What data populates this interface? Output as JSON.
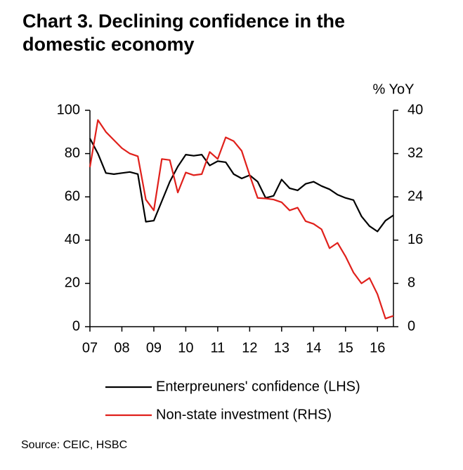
{
  "chart_data": {
    "type": "line",
    "title": "Chart 3. Declining confidence in the domestic economy",
    "y2_label": "% YoY",
    "source": "Source: CEIC, HSBC",
    "x": [
      2007,
      2007.25,
      2007.5,
      2007.75,
      2008,
      2008.25,
      2008.5,
      2008.75,
      2009,
      2009.25,
      2009.5,
      2009.75,
      2010,
      2010.25,
      2010.5,
      2010.75,
      2011,
      2011.25,
      2011.5,
      2011.75,
      2012,
      2012.25,
      2012.5,
      2012.75,
      2013,
      2013.25,
      2013.5,
      2013.75,
      2014,
      2014.25,
      2014.5,
      2014.75,
      2015,
      2015.25,
      2015.5,
      2015.75,
      2016,
      2016.25,
      2016.5
    ],
    "series": [
      {
        "name": "Enterpreuners' confidence (LHS)",
        "color": "#000000",
        "values": [
          87,
          80,
          71,
          70.5,
          71,
          71.5,
          70.5,
          48.5,
          49,
          58,
          67,
          74,
          79.5,
          79,
          79.5,
          74.5,
          76.5,
          76,
          70.5,
          68.5,
          70,
          67,
          59.5,
          60.5,
          68,
          64,
          63,
          66,
          67,
          65,
          63.5,
          61,
          59.5,
          58.5,
          51,
          46.5,
          44,
          49,
          51.5
        ]
      },
      {
        "name": "Non-state investment (RHS)",
        "color": "#e0201b",
        "axis": "y2",
        "values": [
          29.5,
          38.2,
          36,
          34.5,
          33,
          32,
          31.5,
          23.5,
          21.5,
          31,
          30.8,
          24.8,
          28.5,
          28,
          28.2,
          32.3,
          31,
          35,
          34.3,
          32.5,
          28,
          23.8,
          23.7,
          23.5,
          23,
          21.5,
          22,
          19.5,
          19,
          18,
          14.5,
          15.5,
          13,
          10,
          8,
          9,
          6,
          1.5,
          2
        ]
      }
    ],
    "xlim": [
      2007,
      2016.5
    ],
    "xticks": [
      {
        "value": 2007,
        "label": "07"
      },
      {
        "value": 2008,
        "label": "08"
      },
      {
        "value": 2009,
        "label": "09"
      },
      {
        "value": 2010,
        "label": "10"
      },
      {
        "value": 2011,
        "label": "11"
      },
      {
        "value": 2012,
        "label": "12"
      },
      {
        "value": 2013,
        "label": "13"
      },
      {
        "value": 2014,
        "label": "14"
      },
      {
        "value": 2015,
        "label": "15"
      },
      {
        "value": 2016,
        "label": "16"
      }
    ],
    "ylim": [
      0,
      100
    ],
    "yticks": [
      0,
      20,
      40,
      60,
      80,
      100
    ],
    "y2lim": [
      0,
      40
    ],
    "y2ticks": [
      0,
      8,
      16,
      24,
      32,
      40
    ]
  }
}
